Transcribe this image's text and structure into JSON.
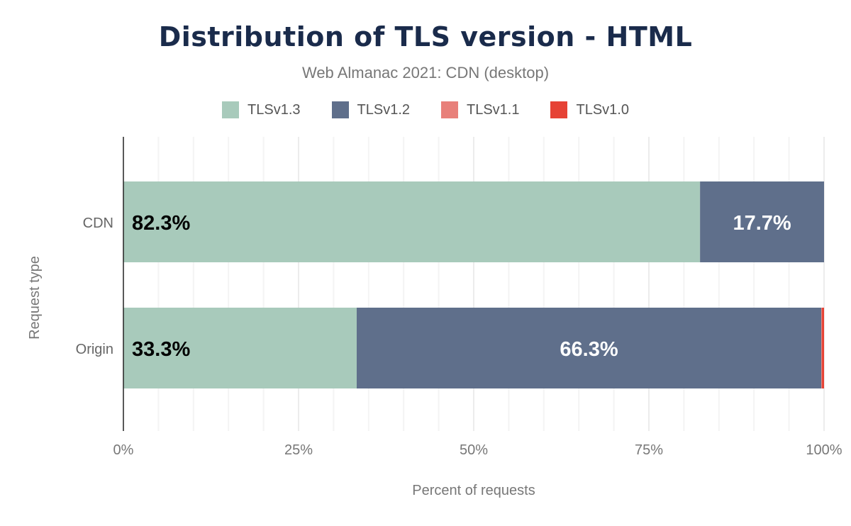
{
  "chart_data": {
    "type": "bar",
    "orientation": "horizontal",
    "stacked": true,
    "title": "Distribution of TLS version - HTML",
    "subtitle": "Web Almanac 2021: CDN (desktop)",
    "xlabel": "Percent of requests",
    "ylabel": "Request type",
    "categories": [
      "CDN",
      "Origin"
    ],
    "series": [
      {
        "name": "TLSv1.3",
        "color": "#a8cabb",
        "values": [
          82.3,
          33.3
        ],
        "labels": [
          "82.3%",
          "33.3%"
        ],
        "label_color": "#000000"
      },
      {
        "name": "TLSv1.2",
        "color": "#5f6f8b",
        "values": [
          17.7,
          66.3
        ],
        "labels": [
          "17.7%",
          "66.3%"
        ],
        "label_color": "#ffffff"
      },
      {
        "name": "TLSv1.1",
        "color": "#e8807a",
        "values": [
          0,
          0.1
        ],
        "labels": [
          "",
          ""
        ]
      },
      {
        "name": "TLSv1.0",
        "color": "#e64235",
        "values": [
          0,
          0.3
        ],
        "labels": [
          "",
          ""
        ]
      }
    ],
    "xlim": [
      0,
      100
    ],
    "xticks": [
      "0%",
      "25%",
      "50%",
      "75%",
      "100%"
    ],
    "grid": true,
    "legend_position": "top"
  }
}
